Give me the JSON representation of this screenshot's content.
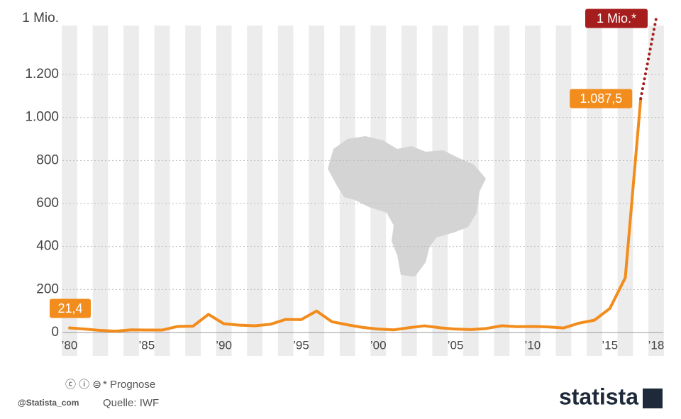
{
  "chart_data": {
    "type": "line",
    "categories": [
      "’80",
      null,
      null,
      null,
      null,
      "’85",
      null,
      null,
      null,
      null,
      "’90",
      null,
      null,
      null,
      null,
      "’95",
      null,
      null,
      null,
      null,
      "’00",
      null,
      null,
      null,
      null,
      "’05",
      null,
      null,
      null,
      null,
      "’10",
      null,
      null,
      null,
      null,
      "’15",
      null,
      null,
      "’18"
    ],
    "series": [
      {
        "color": "#f28c1c",
        "values": [
          21.4,
          16,
          9.7,
          6.3,
          12.2,
          11.4,
          11.5,
          28.1,
          29.5,
          84.5,
          40.7,
          34.2,
          31.4,
          38.1,
          60.8,
          59.9,
          99.9,
          50,
          35.8,
          23.6,
          16.2,
          12.5,
          22.4,
          31.1,
          21.7,
          16,
          13.7,
          18.7,
          31.4,
          27.1,
          28.2,
          26.1,
          21.1,
          43.5,
          57.3,
          111.8,
          254.9,
          1087.5,
          null
        ],
        "value_labels": [
          "21,4",
          null,
          null,
          null,
          null,
          null,
          null,
          null,
          null,
          null,
          null,
          null,
          null,
          null,
          null,
          null,
          null,
          null,
          null,
          null,
          null,
          null,
          null,
          null,
          null,
          null,
          null,
          null,
          null,
          null,
          null,
          null,
          null,
          null,
          null,
          null,
          null,
          "1.087,5",
          null
        ]
      },
      {
        "color": "#a51d1d",
        "style": "dotted",
        "values": [
          null,
          null,
          null,
          null,
          null,
          null,
          null,
          null,
          null,
          null,
          null,
          null,
          null,
          null,
          null,
          null,
          null,
          null,
          null,
          null,
          null,
          null,
          null,
          null,
          null,
          null,
          null,
          null,
          null,
          null,
          null,
          null,
          null,
          null,
          null,
          null,
          null,
          1087.5,
          1000000
        ],
        "value_labels": [
          null,
          null,
          null,
          null,
          null,
          null,
          null,
          null,
          null,
          null,
          null,
          null,
          null,
          null,
          null,
          null,
          null,
          null,
          null,
          null,
          null,
          null,
          null,
          null,
          null,
          null,
          null,
          null,
          null,
          null,
          null,
          null,
          null,
          null,
          null,
          null,
          null,
          null,
          "1 Mio.*"
        ]
      }
    ],
    "ylim": [
      0,
      1000000
    ],
    "axis_break": [
      1200,
      1000000
    ],
    "yticks": [
      0,
      200,
      400,
      600,
      800,
      {
        "value": 1000,
        "label": "1.000"
      },
      {
        "value": 1200,
        "label": "1.200"
      },
      {
        "value": 1000000,
        "label": "1 Mio."
      }
    ],
    "grid": true,
    "note": "* Prognose",
    "source": "Quelle: IWF",
    "credit": "@Statista_com",
    "brand": "statista"
  }
}
